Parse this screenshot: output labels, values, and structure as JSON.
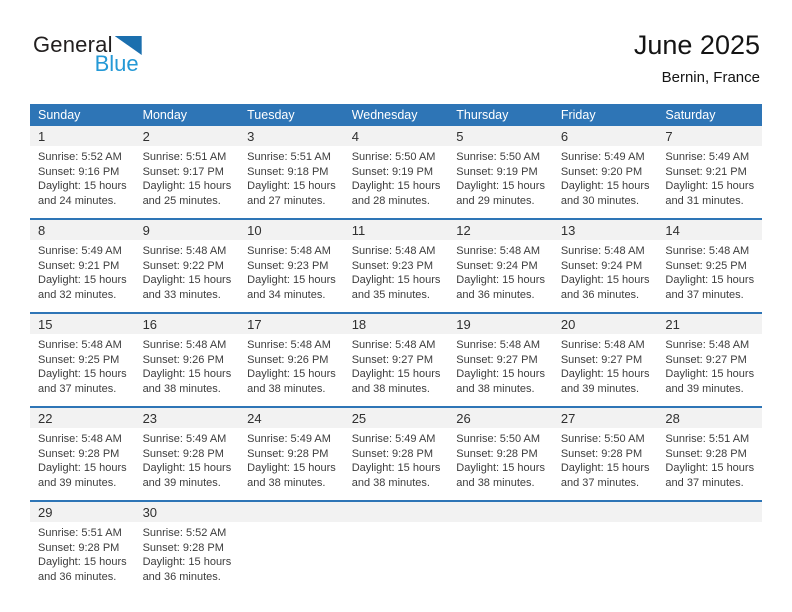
{
  "logo": {
    "general": "General",
    "blue": "Blue"
  },
  "header": {
    "month_title": "June 2025",
    "location": "Bernin, France"
  },
  "colors": {
    "header_blue": "#2E75B6",
    "band_gray": "#F2F2F2",
    "logo_blue": "#2499D6",
    "logo_triangle_blue": "#1B6FAE"
  },
  "calendar": {
    "weekdays": [
      "Sunday",
      "Monday",
      "Tuesday",
      "Wednesday",
      "Thursday",
      "Friday",
      "Saturday"
    ],
    "weeks": [
      [
        {
          "day": "1",
          "sunrise": "Sunrise: 5:52 AM",
          "sunset": "Sunset: 9:16 PM",
          "daylight_line1": "Daylight: 15 hours",
          "daylight_line2": "and 24 minutes."
        },
        {
          "day": "2",
          "sunrise": "Sunrise: 5:51 AM",
          "sunset": "Sunset: 9:17 PM",
          "daylight_line1": "Daylight: 15 hours",
          "daylight_line2": "and 25 minutes."
        },
        {
          "day": "3",
          "sunrise": "Sunrise: 5:51 AM",
          "sunset": "Sunset: 9:18 PM",
          "daylight_line1": "Daylight: 15 hours",
          "daylight_line2": "and 27 minutes."
        },
        {
          "day": "4",
          "sunrise": "Sunrise: 5:50 AM",
          "sunset": "Sunset: 9:19 PM",
          "daylight_line1": "Daylight: 15 hours",
          "daylight_line2": "and 28 minutes."
        },
        {
          "day": "5",
          "sunrise": "Sunrise: 5:50 AM",
          "sunset": "Sunset: 9:19 PM",
          "daylight_line1": "Daylight: 15 hours",
          "daylight_line2": "and 29 minutes."
        },
        {
          "day": "6",
          "sunrise": "Sunrise: 5:49 AM",
          "sunset": "Sunset: 9:20 PM",
          "daylight_line1": "Daylight: 15 hours",
          "daylight_line2": "and 30 minutes."
        },
        {
          "day": "7",
          "sunrise": "Sunrise: 5:49 AM",
          "sunset": "Sunset: 9:21 PM",
          "daylight_line1": "Daylight: 15 hours",
          "daylight_line2": "and 31 minutes."
        }
      ],
      [
        {
          "day": "8",
          "sunrise": "Sunrise: 5:49 AM",
          "sunset": "Sunset: 9:21 PM",
          "daylight_line1": "Daylight: 15 hours",
          "daylight_line2": "and 32 minutes."
        },
        {
          "day": "9",
          "sunrise": "Sunrise: 5:48 AM",
          "sunset": "Sunset: 9:22 PM",
          "daylight_line1": "Daylight: 15 hours",
          "daylight_line2": "and 33 minutes."
        },
        {
          "day": "10",
          "sunrise": "Sunrise: 5:48 AM",
          "sunset": "Sunset: 9:23 PM",
          "daylight_line1": "Daylight: 15 hours",
          "daylight_line2": "and 34 minutes."
        },
        {
          "day": "11",
          "sunrise": "Sunrise: 5:48 AM",
          "sunset": "Sunset: 9:23 PM",
          "daylight_line1": "Daylight: 15 hours",
          "daylight_line2": "and 35 minutes."
        },
        {
          "day": "12",
          "sunrise": "Sunrise: 5:48 AM",
          "sunset": "Sunset: 9:24 PM",
          "daylight_line1": "Daylight: 15 hours",
          "daylight_line2": "and 36 minutes."
        },
        {
          "day": "13",
          "sunrise": "Sunrise: 5:48 AM",
          "sunset": "Sunset: 9:24 PM",
          "daylight_line1": "Daylight: 15 hours",
          "daylight_line2": "and 36 minutes."
        },
        {
          "day": "14",
          "sunrise": "Sunrise: 5:48 AM",
          "sunset": "Sunset: 9:25 PM",
          "daylight_line1": "Daylight: 15 hours",
          "daylight_line2": "and 37 minutes."
        }
      ],
      [
        {
          "day": "15",
          "sunrise": "Sunrise: 5:48 AM",
          "sunset": "Sunset: 9:25 PM",
          "daylight_line1": "Daylight: 15 hours",
          "daylight_line2": "and 37 minutes."
        },
        {
          "day": "16",
          "sunrise": "Sunrise: 5:48 AM",
          "sunset": "Sunset: 9:26 PM",
          "daylight_line1": "Daylight: 15 hours",
          "daylight_line2": "and 38 minutes."
        },
        {
          "day": "17",
          "sunrise": "Sunrise: 5:48 AM",
          "sunset": "Sunset: 9:26 PM",
          "daylight_line1": "Daylight: 15 hours",
          "daylight_line2": "and 38 minutes."
        },
        {
          "day": "18",
          "sunrise": "Sunrise: 5:48 AM",
          "sunset": "Sunset: 9:27 PM",
          "daylight_line1": "Daylight: 15 hours",
          "daylight_line2": "and 38 minutes."
        },
        {
          "day": "19",
          "sunrise": "Sunrise: 5:48 AM",
          "sunset": "Sunset: 9:27 PM",
          "daylight_line1": "Daylight: 15 hours",
          "daylight_line2": "and 38 minutes."
        },
        {
          "day": "20",
          "sunrise": "Sunrise: 5:48 AM",
          "sunset": "Sunset: 9:27 PM",
          "daylight_line1": "Daylight: 15 hours",
          "daylight_line2": "and 39 minutes."
        },
        {
          "day": "21",
          "sunrise": "Sunrise: 5:48 AM",
          "sunset": "Sunset: 9:27 PM",
          "daylight_line1": "Daylight: 15 hours",
          "daylight_line2": "and 39 minutes."
        }
      ],
      [
        {
          "day": "22",
          "sunrise": "Sunrise: 5:48 AM",
          "sunset": "Sunset: 9:28 PM",
          "daylight_line1": "Daylight: 15 hours",
          "daylight_line2": "and 39 minutes."
        },
        {
          "day": "23",
          "sunrise": "Sunrise: 5:49 AM",
          "sunset": "Sunset: 9:28 PM",
          "daylight_line1": "Daylight: 15 hours",
          "daylight_line2": "and 39 minutes."
        },
        {
          "day": "24",
          "sunrise": "Sunrise: 5:49 AM",
          "sunset": "Sunset: 9:28 PM",
          "daylight_line1": "Daylight: 15 hours",
          "daylight_line2": "and 38 minutes."
        },
        {
          "day": "25",
          "sunrise": "Sunrise: 5:49 AM",
          "sunset": "Sunset: 9:28 PM",
          "daylight_line1": "Daylight: 15 hours",
          "daylight_line2": "and 38 minutes."
        },
        {
          "day": "26",
          "sunrise": "Sunrise: 5:50 AM",
          "sunset": "Sunset: 9:28 PM",
          "daylight_line1": "Daylight: 15 hours",
          "daylight_line2": "and 38 minutes."
        },
        {
          "day": "27",
          "sunrise": "Sunrise: 5:50 AM",
          "sunset": "Sunset: 9:28 PM",
          "daylight_line1": "Daylight: 15 hours",
          "daylight_line2": "and 37 minutes."
        },
        {
          "day": "28",
          "sunrise": "Sunrise: 5:51 AM",
          "sunset": "Sunset: 9:28 PM",
          "daylight_line1": "Daylight: 15 hours",
          "daylight_line2": "and 37 minutes."
        }
      ],
      [
        {
          "day": "29",
          "sunrise": "Sunrise: 5:51 AM",
          "sunset": "Sunset: 9:28 PM",
          "daylight_line1": "Daylight: 15 hours",
          "daylight_line2": "and 36 minutes."
        },
        {
          "day": "30",
          "sunrise": "Sunrise: 5:52 AM",
          "sunset": "Sunset: 9:28 PM",
          "daylight_line1": "Daylight: 15 hours",
          "daylight_line2": "and 36 minutes."
        },
        null,
        null,
        null,
        null,
        null
      ]
    ]
  }
}
